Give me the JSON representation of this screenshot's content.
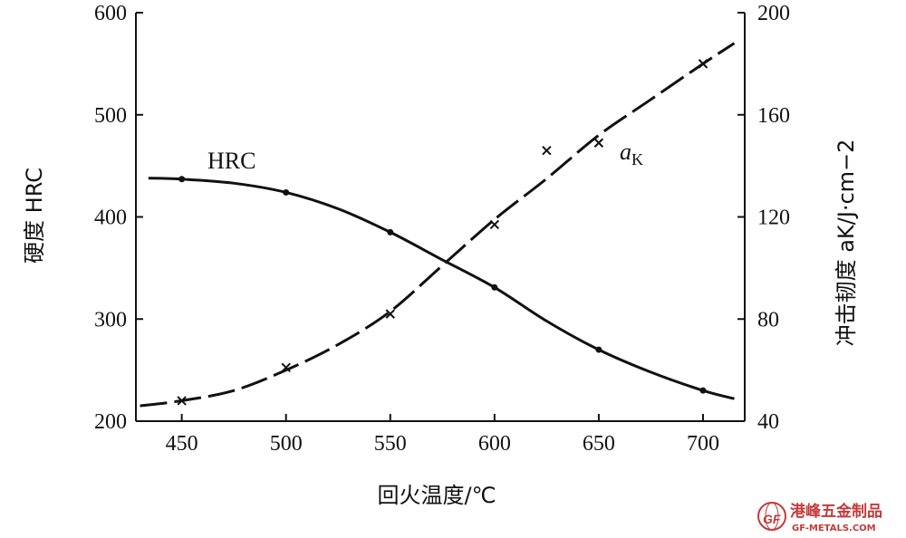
{
  "chart_data": {
    "type": "line",
    "xlabel": "回火温度/℃",
    "ylabel_left": "硬度 HRC",
    "ylabel_right": "冲击韧度 aK/J·cm−2",
    "xlim": [
      428,
      720
    ],
    "ylim_left": [
      200,
      600
    ],
    "ylim_right": [
      40,
      200
    ],
    "xticks": [
      450,
      500,
      550,
      600,
      650,
      700
    ],
    "yticks_left": [
      200,
      300,
      400,
      500,
      600
    ],
    "yticks_right": [
      40,
      80,
      120,
      160,
      200
    ],
    "grid": false,
    "series": [
      {
        "name": "HRC",
        "axis": "left",
        "style": "solid",
        "label": "HRC",
        "x": [
          434,
          450,
          475,
          500,
          525,
          550,
          575,
          600,
          625,
          650,
          675,
          700,
          715
        ],
        "y": [
          438,
          437,
          433,
          424,
          408,
          385,
          358,
          331,
          298,
          270,
          248,
          230,
          222
        ],
        "markers_x": [
          450,
          500,
          550,
          600,
          650,
          700
        ],
        "markers_y": [
          437,
          424,
          385,
          331,
          270,
          230
        ]
      },
      {
        "name": "aK",
        "axis": "right",
        "style": "dashed",
        "label_main": "a",
        "label_sub": "K",
        "x": [
          430,
          450,
          475,
          500,
          525,
          550,
          575,
          600,
          625,
          650,
          675,
          700,
          715
        ],
        "y": [
          46,
          48,
          52,
          60,
          70,
          83,
          101,
          119,
          135,
          152,
          166,
          180,
          188
        ],
        "markers_x": [
          450,
          500,
          550,
          600,
          625,
          650,
          700
        ],
        "markers_y": [
          48,
          61,
          82,
          117,
          146,
          149,
          180
        ]
      }
    ]
  },
  "watermark": {
    "text_cn": "港峰五金制品",
    "text_en": "GF-METALS.COM",
    "logo_text": "GF",
    "color": "#c23b3b"
  }
}
